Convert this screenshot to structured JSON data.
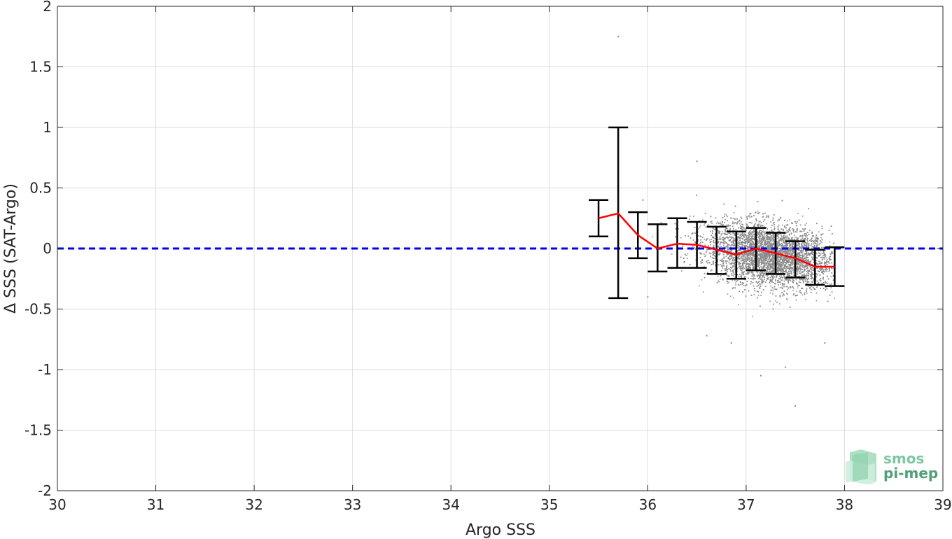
{
  "chart_data": {
    "type": "scatter",
    "title": "",
    "xlabel": "Argo SSS",
    "ylabel": "Δ SSS (SAT-Argo)",
    "xlim": [
      30,
      39
    ],
    "ylim": [
      -2,
      2
    ],
    "xticks": [
      "30",
      "31",
      "32",
      "33",
      "34",
      "35",
      "36",
      "37",
      "38",
      "39"
    ],
    "yticks": [
      "-2",
      "-1.5",
      "-1",
      "-0.5",
      "0",
      "0.5",
      "1",
      "1.5",
      "2"
    ],
    "grid": true,
    "reference_line": {
      "y": 0,
      "style": "dashed",
      "color": "#0000ee"
    },
    "scatter_cloud": {
      "color": "#8c8c8c",
      "approx_count": 9000,
      "x_range": [
        35.9,
        37.9
      ],
      "center": [
        37.25,
        -0.05
      ],
      "outliers": [
        [
          35.7,
          1.75
        ],
        [
          37.5,
          -1.3
        ],
        [
          37.15,
          -1.05
        ],
        [
          37.4,
          -0.98
        ],
        [
          36.85,
          -0.78
        ],
        [
          37.8,
          -0.78
        ],
        [
          36.6,
          -0.72
        ],
        [
          36.5,
          0.72
        ],
        [
          36.0,
          -0.4
        ],
        [
          35.95,
          0.4
        ]
      ]
    },
    "binned_stats": {
      "line_color": "#ff0000",
      "errorbar_color": "#000000",
      "x": [
        35.5,
        35.7,
        35.9,
        36.1,
        36.3,
        36.5,
        36.7,
        36.9,
        37.1,
        37.3,
        37.5,
        37.7,
        37.9
      ],
      "mean": [
        0.25,
        0.29,
        0.11,
        0.0,
        0.04,
        0.03,
        -0.01,
        -0.05,
        0.0,
        -0.04,
        -0.08,
        -0.15,
        -0.15
      ],
      "upper": [
        0.4,
        1.0,
        0.3,
        0.2,
        0.25,
        0.22,
        0.18,
        0.14,
        0.17,
        0.13,
        0.06,
        -0.01,
        0.01
      ],
      "lower": [
        0.1,
        -0.41,
        -0.08,
        -0.19,
        -0.16,
        -0.16,
        -0.21,
        -0.25,
        -0.18,
        -0.21,
        -0.24,
        -0.3,
        -0.31
      ]
    }
  },
  "logo": {
    "line1": "smos",
    "line2": "pi-mep",
    "color_line1": "#7fc7a3",
    "color_line2": "#4fa07a"
  }
}
